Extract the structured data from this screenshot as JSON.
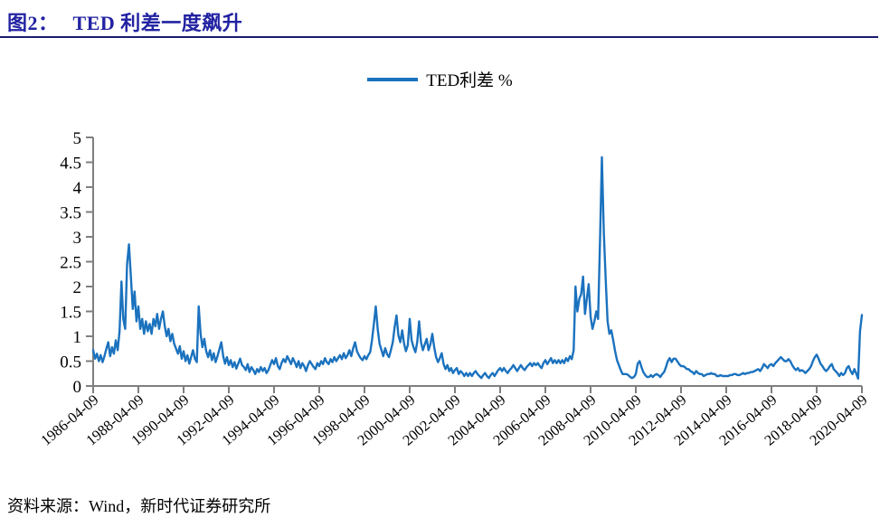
{
  "header": {
    "figure_label": "图2：",
    "title": "TED 利差一度飙升"
  },
  "legend": {
    "label": "TED利差 %",
    "swatch_color": "#1b72be"
  },
  "source": {
    "text": "资料来源：Wind，新时代证券研究所"
  },
  "colors": {
    "title": "#2222a2",
    "rule": "#1a1a70",
    "axis": "#7f7f7f",
    "line": "#1b72be",
    "tick_text": "#000000"
  },
  "chart_data": {
    "type": "line",
    "series_name": "TED利差 %",
    "xlabel": "",
    "ylabel": "",
    "ylim": [
      0,
      5
    ],
    "y_ticks": [
      0,
      0.5,
      1,
      1.5,
      2,
      2.5,
      3,
      3.5,
      4,
      4.5,
      5
    ],
    "x_tick_labels": [
      "1986-04-09",
      "1988-04-09",
      "1990-04-09",
      "1992-04-09",
      "1994-04-09",
      "1996-04-09",
      "1998-04-09",
      "2000-04-09",
      "2002-04-09",
      "2004-04-09",
      "2006-04-09",
      "2008-04-09",
      "2010-04-09",
      "2012-04-09",
      "2014-04-09",
      "2016-04-09",
      "2018-04-09",
      "2020-04-09"
    ],
    "x_tick_interval_months": 24,
    "start": "1986-04",
    "end": "2020-04",
    "frequency": "monthly",
    "grid": false,
    "legend_position": "top-center",
    "monthly": [
      {
        "year": 1986,
        "start_month": 4,
        "values": [
          0.72,
          0.55,
          0.65,
          0.5,
          0.62,
          0.48,
          0.6,
          0.75,
          0.88
        ]
      },
      {
        "year": 1987,
        "values": [
          0.6,
          0.78,
          0.65,
          0.92,
          0.72,
          1.1,
          2.1,
          1.35,
          1.15,
          2.45,
          2.85,
          2.2
        ]
      },
      {
        "year": 1988,
        "values": [
          1.55,
          1.9,
          1.3,
          1.6,
          1.15,
          1.35,
          1.05,
          1.3,
          1.1,
          1.25,
          1.05,
          1.35
        ]
      },
      {
        "year": 1989,
        "values": [
          1.2,
          1.45,
          1.15,
          1.35,
          1.5,
          1.2,
          1.0,
          1.15,
          0.9,
          1.05,
          0.85,
          0.75
        ]
      },
      {
        "year": 1990,
        "values": [
          0.65,
          0.8,
          0.55,
          0.7,
          0.5,
          0.62,
          0.45,
          0.58,
          0.72,
          0.55,
          0.48,
          1.6
        ]
      },
      {
        "year": 1991,
        "values": [
          1.05,
          0.78,
          0.95,
          0.7,
          0.58,
          0.72,
          0.52,
          0.66,
          0.48,
          0.6,
          0.74,
          0.88
        ]
      },
      {
        "year": 1992,
        "values": [
          0.6,
          0.45,
          0.58,
          0.42,
          0.52,
          0.38,
          0.48,
          0.35,
          0.45,
          0.55,
          0.42,
          0.38
        ]
      },
      {
        "year": 1993,
        "values": [
          0.32,
          0.44,
          0.28,
          0.38,
          0.32,
          0.24,
          0.34,
          0.28,
          0.38,
          0.3,
          0.36,
          0.26
        ]
      },
      {
        "year": 1994,
        "values": [
          0.32,
          0.42,
          0.52,
          0.44,
          0.56,
          0.4,
          0.34,
          0.46,
          0.54,
          0.48,
          0.6,
          0.52
        ]
      },
      {
        "year": 1995,
        "values": [
          0.44,
          0.56,
          0.48,
          0.38,
          0.5,
          0.36,
          0.46,
          0.4,
          0.3,
          0.42,
          0.5,
          0.44
        ]
      },
      {
        "year": 1996,
        "values": [
          0.38,
          0.34,
          0.46,
          0.4,
          0.5,
          0.44,
          0.56,
          0.48,
          0.44,
          0.54,
          0.48,
          0.58
        ]
      },
      {
        "year": 1997,
        "values": [
          0.5,
          0.56,
          0.62,
          0.54,
          0.66,
          0.56,
          0.62,
          0.72,
          0.6,
          0.76,
          0.88,
          0.7
        ]
      },
      {
        "year": 1998,
        "values": [
          0.62,
          0.56,
          0.52,
          0.6,
          0.54,
          0.62,
          0.68,
          0.92,
          1.25,
          1.6,
          1.15,
          0.85
        ]
      },
      {
        "year": 1999,
        "values": [
          0.72,
          0.6,
          0.76,
          0.64,
          0.58,
          0.72,
          0.88,
          1.18,
          1.42,
          1.02,
          0.88,
          1.12
        ]
      },
      {
        "year": 2000,
        "values": [
          0.85,
          0.7,
          0.82,
          1.35,
          0.92,
          0.78,
          0.68,
          0.88,
          1.3,
          0.88,
          0.72,
          0.84
        ]
      },
      {
        "year": 2001,
        "values": [
          0.95,
          0.72,
          0.84,
          1.05,
          0.78,
          0.58,
          0.48,
          0.56,
          0.66,
          0.44,
          0.34,
          0.42
        ]
      },
      {
        "year": 2002,
        "values": [
          0.3,
          0.36,
          0.26,
          0.32,
          0.36,
          0.24,
          0.3,
          0.26,
          0.2,
          0.26,
          0.2,
          0.26
        ]
      },
      {
        "year": 2003,
        "values": [
          0.2,
          0.26,
          0.3,
          0.24,
          0.2,
          0.16,
          0.22,
          0.26,
          0.2,
          0.16,
          0.22,
          0.26
        ]
      },
      {
        "year": 2004,
        "values": [
          0.2,
          0.26,
          0.32,
          0.36,
          0.3,
          0.36,
          0.3,
          0.26,
          0.32,
          0.36,
          0.42,
          0.36
        ]
      },
      {
        "year": 2005,
        "values": [
          0.3,
          0.36,
          0.42,
          0.36,
          0.32,
          0.38,
          0.42,
          0.46,
          0.4,
          0.46,
          0.42,
          0.46
        ]
      },
      {
        "year": 2006,
        "values": [
          0.4,
          0.36,
          0.46,
          0.52,
          0.44,
          0.5,
          0.56,
          0.46,
          0.52,
          0.46,
          0.52,
          0.46
        ]
      },
      {
        "year": 2007,
        "values": [
          0.52,
          0.46,
          0.56,
          0.5,
          0.6,
          0.54,
          0.72,
          2.0,
          1.5,
          1.75,
          1.85,
          2.2
        ]
      },
      {
        "year": 2008,
        "values": [
          1.45,
          1.75,
          2.05,
          1.4,
          1.15,
          1.3,
          1.5,
          1.35,
          2.9,
          4.6,
          3.1,
          2.15
        ]
      },
      {
        "year": 2009,
        "values": [
          1.3,
          1.05,
          1.12,
          0.92,
          0.7,
          0.52,
          0.42,
          0.32,
          0.24,
          0.24,
          0.24,
          0.22
        ]
      },
      {
        "year": 2010,
        "values": [
          0.18,
          0.16,
          0.18,
          0.24,
          0.45,
          0.5,
          0.38,
          0.28,
          0.22,
          0.18,
          0.18,
          0.22
        ]
      },
      {
        "year": 2011,
        "values": [
          0.18,
          0.22,
          0.24,
          0.22,
          0.18,
          0.24,
          0.28,
          0.38,
          0.5,
          0.56,
          0.48,
          0.55
        ]
      },
      {
        "year": 2012,
        "values": [
          0.55,
          0.5,
          0.44,
          0.4,
          0.4,
          0.38,
          0.34,
          0.34,
          0.3,
          0.28,
          0.24,
          0.3
        ]
      },
      {
        "year": 2013,
        "values": [
          0.26,
          0.24,
          0.24,
          0.2,
          0.22,
          0.24,
          0.24,
          0.26,
          0.24,
          0.24,
          0.2,
          0.2
        ]
      },
      {
        "year": 2014,
        "values": [
          0.22,
          0.2,
          0.2,
          0.2,
          0.2,
          0.22,
          0.22,
          0.24,
          0.24,
          0.22,
          0.22,
          0.24
        ]
      },
      {
        "year": 2015,
        "values": [
          0.26,
          0.24,
          0.26,
          0.26,
          0.28,
          0.28,
          0.3,
          0.32,
          0.34,
          0.3,
          0.36,
          0.44
        ]
      },
      {
        "year": 2016,
        "values": [
          0.4,
          0.36,
          0.42,
          0.44,
          0.4,
          0.46,
          0.5,
          0.54,
          0.58,
          0.54,
          0.5,
          0.5
        ]
      },
      {
        "year": 2017,
        "values": [
          0.54,
          0.5,
          0.42,
          0.36,
          0.32,
          0.36,
          0.3,
          0.32,
          0.3,
          0.26,
          0.3,
          0.34
        ]
      },
      {
        "year": 2018,
        "values": [
          0.4,
          0.5,
          0.58,
          0.63,
          0.55,
          0.45,
          0.4,
          0.34,
          0.3,
          0.34,
          0.4,
          0.44
        ]
      },
      {
        "year": 2019,
        "values": [
          0.34,
          0.3,
          0.26,
          0.2,
          0.26,
          0.22,
          0.26,
          0.36,
          0.4,
          0.3,
          0.24,
          0.34
        ]
      },
      {
        "year": 2020,
        "values": [
          0.25,
          0.15,
          1.1,
          1.43
        ]
      }
    ]
  }
}
